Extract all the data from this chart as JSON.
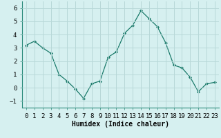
{
  "x": [
    0,
    1,
    2,
    3,
    4,
    5,
    6,
    7,
    8,
    9,
    10,
    11,
    12,
    13,
    14,
    15,
    16,
    17,
    18,
    19,
    20,
    21,
    22,
    23
  ],
  "y": [
    3.2,
    3.5,
    3.0,
    2.6,
    1.0,
    0.5,
    -0.1,
    -0.8,
    0.3,
    0.5,
    2.3,
    2.7,
    4.1,
    4.7,
    5.8,
    5.2,
    4.6,
    3.4,
    1.7,
    1.5,
    0.8,
    -0.3,
    0.3,
    0.4
  ],
  "line_color": "#1a7a6a",
  "marker": "D",
  "marker_size": 2,
  "bg_color": "#d6f0f0",
  "grid_color": "#b8d8d8",
  "xlabel": "Humidex (Indice chaleur)",
  "xlabel_fontsize": 7,
  "ylim": [
    -1.5,
    6.5
  ],
  "xlim": [
    -0.5,
    23.5
  ],
  "yticks": [
    -1,
    0,
    1,
    2,
    3,
    4,
    5,
    6
  ],
  "xtick_labels": [
    "0",
    "1",
    "2",
    "3",
    "4",
    "5",
    "6",
    "7",
    "8",
    "9",
    "10",
    "11",
    "12",
    "13",
    "14",
    "15",
    "16",
    "17",
    "18",
    "19",
    "20",
    "21",
    "22",
    "23"
  ],
  "tick_fontsize": 6.5
}
